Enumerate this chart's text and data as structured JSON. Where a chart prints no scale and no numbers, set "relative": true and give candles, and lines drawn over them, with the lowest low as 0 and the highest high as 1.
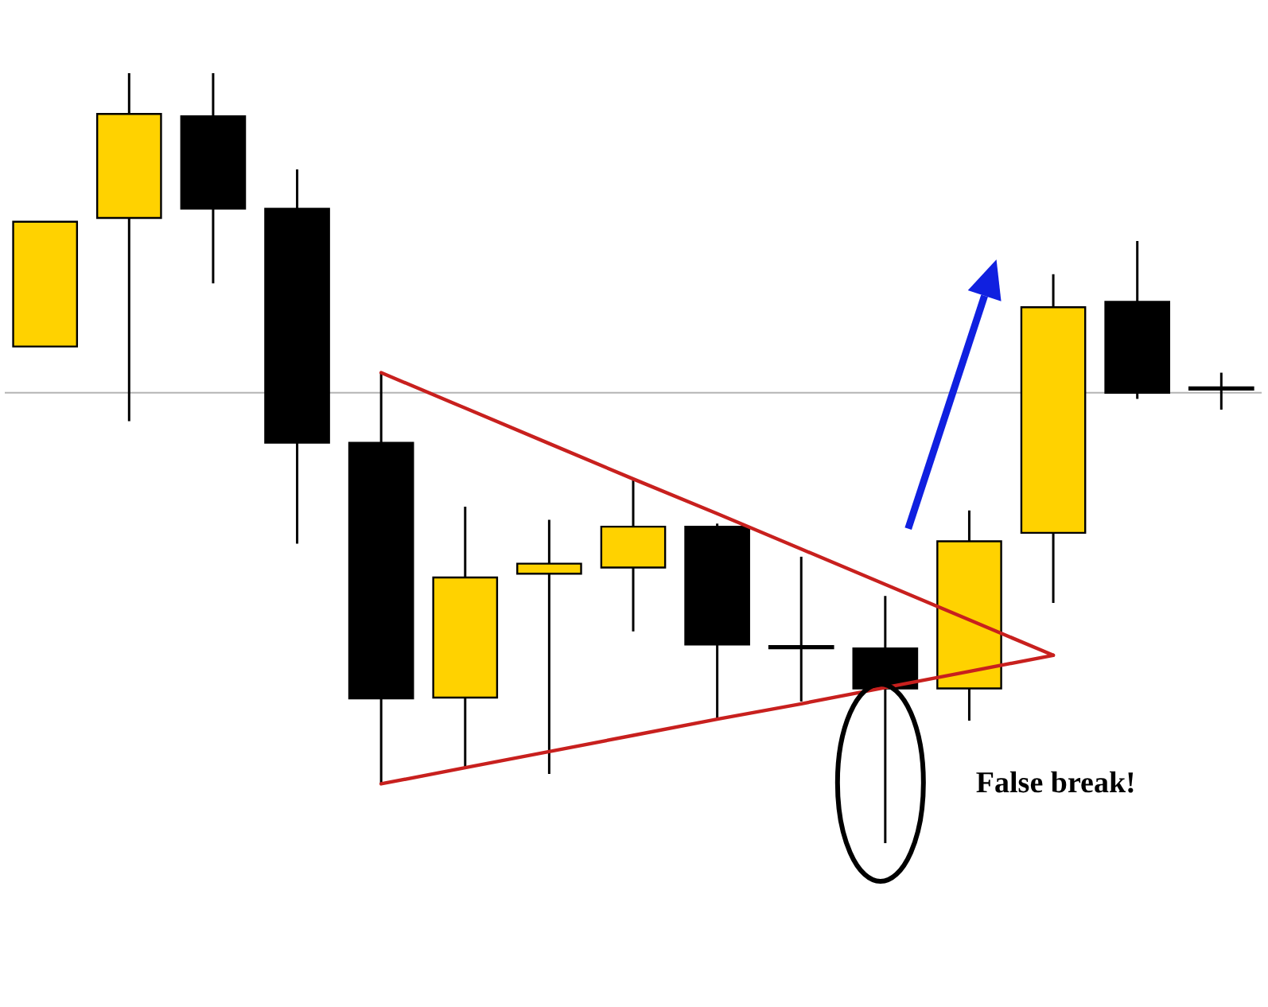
{
  "chart_data": {
    "type": "candlestick",
    "relative": true,
    "categories": [
      null,
      null,
      null,
      null,
      null,
      null,
      null,
      null,
      null,
      null,
      null,
      null,
      null,
      null,
      null
    ],
    "ohlc": [
      [
        0.645,
        0.807,
        0.645,
        0.807
      ],
      [
        0.812,
        1,
        0.548,
        0.947
      ],
      [
        0.944,
        1,
        0.727,
        0.824
      ],
      [
        0.824,
        0.875,
        0.389,
        0.52
      ],
      [
        0.52,
        0.611,
        0.077,
        0.188
      ],
      [
        0.189,
        0.437,
        0.099,
        0.345
      ],
      [
        0.35,
        0.42,
        0.09,
        0.363
      ],
      [
        0.358,
        0.471,
        0.275,
        0.411
      ],
      [
        0.411,
        0.415,
        0.162,
        0.258
      ],
      [
        0.256,
        0.372,
        0.184,
        0.253
      ],
      [
        0.253,
        0.321,
        0,
        0.201
      ],
      [
        0.201,
        0.432,
        0.159,
        0.392
      ],
      [
        0.403,
        0.739,
        0.312,
        0.696
      ],
      [
        0.703,
        0.782,
        0.577,
        0.585
      ],
      [
        0.592,
        0.611,
        0.563,
        0.589
      ]
    ],
    "colors": [
      "#ffd200",
      "#ffd200",
      "#000000",
      "#000000",
      "#000000",
      "#ffd200",
      "#ffd200",
      "#ffd200",
      "#000000",
      "#000000",
      "#000000",
      "#ffd200",
      "#ffd200",
      "#000000",
      "#000000"
    ],
    "ref_lines": [
      {
        "axis": "y",
        "value": 0.585,
        "color": "#b4b4b4"
      }
    ],
    "series": [
      {
        "type": "line",
        "color": "#c8201e",
        "values": [
          null,
          null,
          null,
          null,
          0.611,
          0.565,
          0.519,
          0.473,
          0.428,
          0.382,
          0.336,
          0.29,
          0.244,
          null,
          null
        ]
      },
      {
        "type": "line",
        "color": "#c8201e",
        "values": [
          null,
          null,
          null,
          null,
          0.077,
          0.098,
          0.119,
          0.14,
          0.161,
          0.181,
          0.202,
          0.223,
          0.244,
          null,
          null
        ]
      }
    ],
    "annotations": [
      "False break!"
    ]
  }
}
